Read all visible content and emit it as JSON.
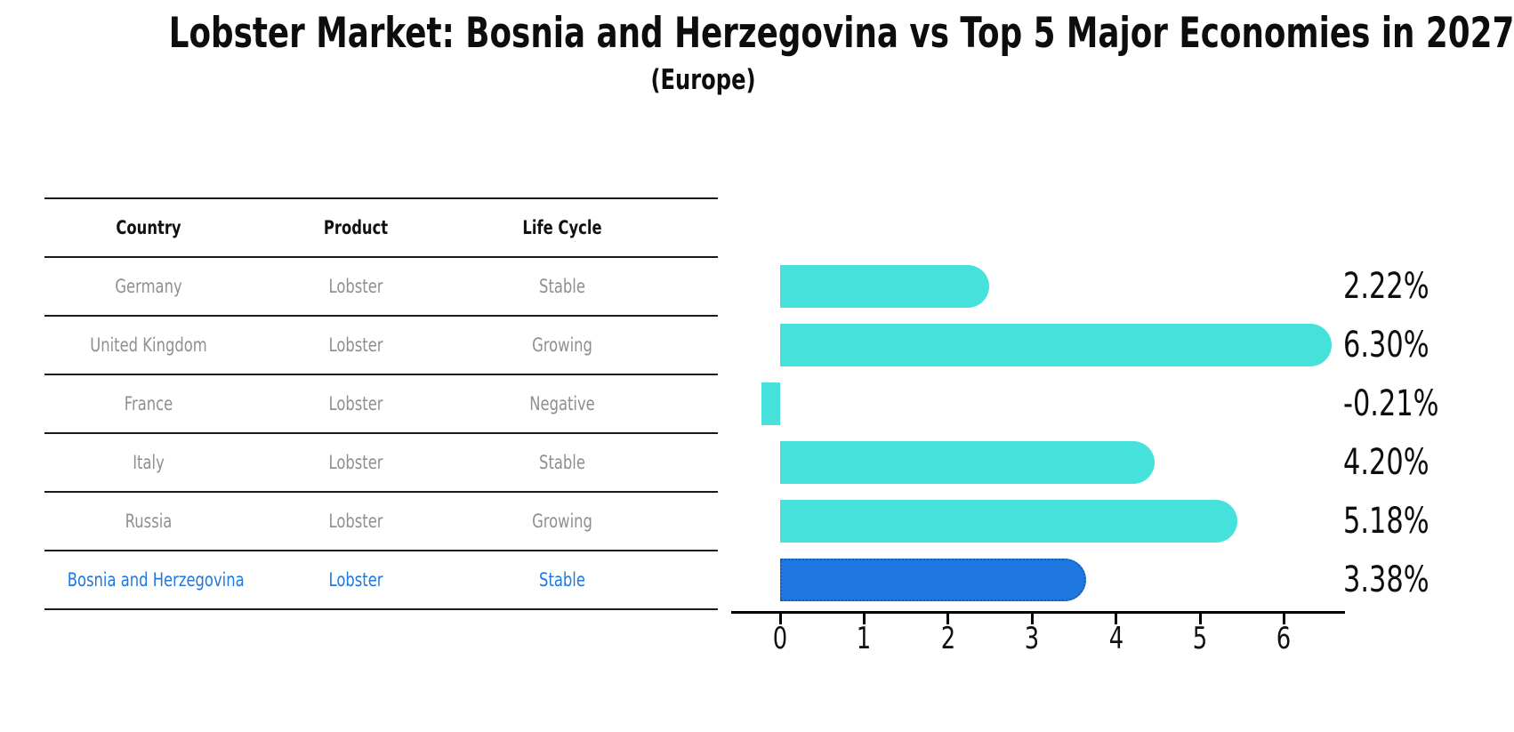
{
  "title": "Lobster Market: Bosnia and Herzegovina vs Top 5 Major Economies in 2027",
  "subtitle": "(Europe)",
  "table": {
    "headers": [
      "Country",
      "Product",
      "Life Cycle"
    ],
    "rows": [
      {
        "country": "Germany",
        "product": "Lobster",
        "life_cycle": "Stable",
        "highlight": false
      },
      {
        "country": "United Kingdom",
        "product": "Lobster",
        "life_cycle": "Growing",
        "highlight": false
      },
      {
        "country": "France",
        "product": "Lobster",
        "life_cycle": "Negative",
        "highlight": false
      },
      {
        "country": "Italy",
        "product": "Lobster",
        "life_cycle": "Stable",
        "highlight": false
      },
      {
        "country": "Russia",
        "product": "Lobster",
        "life_cycle": "Growing",
        "highlight": false
      },
      {
        "country": "Bosnia and Herzegovina",
        "product": "Lobster",
        "life_cycle": "Stable",
        "highlight": true
      }
    ]
  },
  "chart_data": {
    "type": "bar",
    "orientation": "horizontal",
    "title": "Lobster Market: Bosnia and Herzegovina vs Top 5 Major Economies in 2027 (Europe)",
    "categories": [
      "Germany",
      "United Kingdom",
      "France",
      "Italy",
      "Russia",
      "Bosnia and Herzegovina"
    ],
    "values": [
      2.22,
      6.3,
      -0.21,
      4.2,
      5.18,
      3.38
    ],
    "value_labels": [
      "2.22%",
      "6.30%",
      "-0.21%",
      "4.20%",
      "5.18%",
      "3.38%"
    ],
    "xlabel": "",
    "ylabel": "",
    "xticks": [
      "0",
      "1",
      "2",
      "3",
      "4",
      "5",
      "6"
    ],
    "xlim": [
      -0.6,
      6.72
    ],
    "grid": false,
    "legend": false,
    "highlight_index": 5
  },
  "colors": {
    "bar": "#45E1DA",
    "highlight_bar": "#1F78E0",
    "highlight_border": "#155CB8",
    "highlight_text": "#1F78E0",
    "row_text": "#8f8f8f",
    "header_text": "#111111",
    "line": "#1a1a1a",
    "axis": "#000000",
    "label_text": "#0d0d0d"
  }
}
